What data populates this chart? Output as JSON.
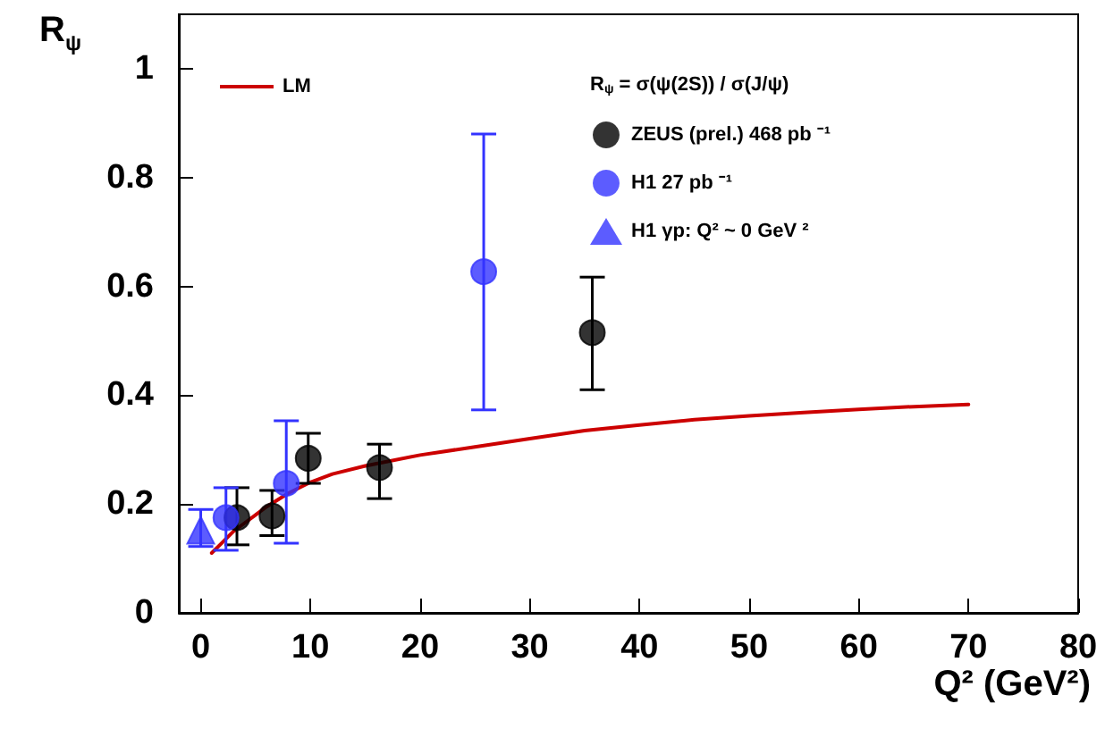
{
  "chart_data": {
    "type": "scatter",
    "xlabel": "Q² (GeV²)",
    "ylabel": "R$_{ψ}$",
    "annotations": [
      "R$_{ψ}$ = σ(ψ(2S)) / σ(J/ψ)"
    ],
    "xlim": [
      -2,
      80
    ],
    "xticks": [
      0,
      10,
      20,
      30,
      40,
      50,
      60,
      70,
      80
    ],
    "ylim": [
      0,
      1.1
    ],
    "yticks": [
      0,
      0.2,
      0.4,
      0.6,
      0.8,
      1
    ],
    "grid": false,
    "legend": "top",
    "series": [
      {
        "name": "LM",
        "type": "line",
        "color": "#cc0000",
        "marker": "none",
        "line_style": "solid",
        "x": [
          1,
          2,
          3,
          4,
          5,
          6,
          8,
          10,
          12,
          15,
          20,
          25,
          30,
          35,
          40,
          45,
          50,
          55,
          60,
          65,
          70
        ],
        "values": [
          0.11,
          0.13,
          0.15,
          0.165,
          0.18,
          0.195,
          0.22,
          0.24,
          0.255,
          0.27,
          0.29,
          0.305,
          0.32,
          0.335,
          0.345,
          0.355,
          0.362,
          0.368,
          0.374,
          0.379,
          0.383
        ]
      },
      {
        "name": "ZEUS (prel.) 468 pb ⁻¹",
        "color": "#000000",
        "marker": "circle",
        "x": [
          3.3,
          6.5,
          9.8,
          16.3,
          35.7
        ],
        "values": [
          0.175,
          0.178,
          0.284,
          0.267,
          0.515
        ],
        "errors": [
          [
            0.125,
            0.23
          ],
          [
            0.142,
            0.225
          ],
          [
            0.238,
            0.33
          ],
          [
            0.21,
            0.31
          ],
          [
            0.41,
            0.617
          ]
        ]
      },
      {
        "name": "H1 27 pb ⁻¹",
        "color": "#3333ff",
        "marker": "circle",
        "x": [
          2.3,
          7.8,
          25.8
        ],
        "values": [
          0.175,
          0.238,
          0.627
        ],
        "errors": [
          [
            0.115,
            0.23
          ],
          [
            0.128,
            0.353
          ],
          [
            0.373,
            0.88
          ]
        ]
      },
      {
        "name": "H1 γp: Q² ~ 0 GeV ²",
        "color": "#3333ff",
        "marker": "triangle",
        "x": [
          0
        ],
        "values": [
          0.152
        ],
        "errors": [
          [
            0.122,
            0.19
          ]
        ]
      }
    ]
  }
}
